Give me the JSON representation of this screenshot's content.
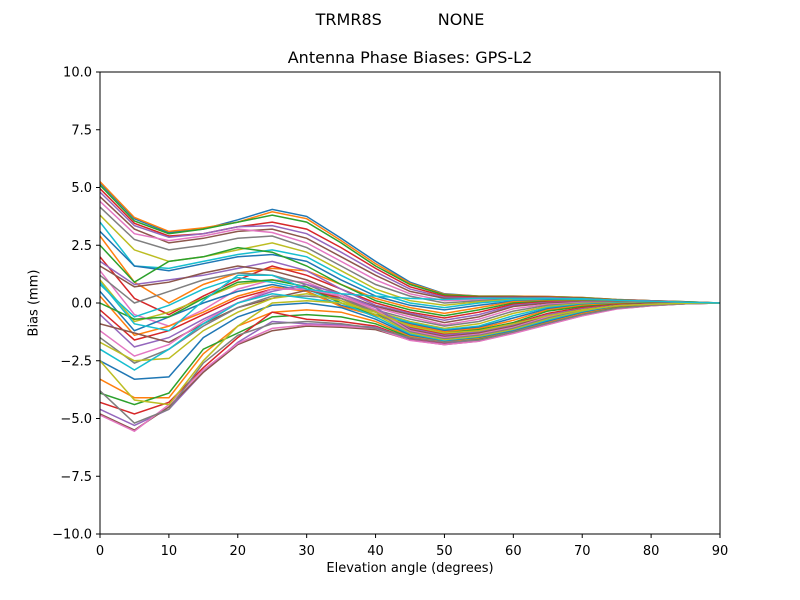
{
  "figure": {
    "suptitle": "TRMR8S           NONE",
    "title": "Antenna Phase Biases: GPS-L2",
    "xlabel": "Elevation angle (degrees)",
    "ylabel": "Bias (mm)"
  },
  "chart_data": {
    "type": "line",
    "title": "Antenna Phase Biases: GPS-L2",
    "suptitle": "TRMR8S           NONE",
    "xlabel": "Elevation angle (degrees)",
    "ylabel": "Bias (mm)",
    "xlim": [
      0,
      90
    ],
    "ylim": [
      -10,
      10
    ],
    "xticks": [
      0,
      10,
      20,
      30,
      40,
      50,
      60,
      70,
      80,
      90
    ],
    "yticks": [
      -10.0,
      -7.5,
      -5.0,
      -2.5,
      0.0,
      2.5,
      5.0,
      7.5,
      10.0
    ],
    "ytick_labels": [
      "−10.0",
      "−7.5",
      "−5.0",
      "−2.5",
      "0.0",
      "2.5",
      "5.0",
      "7.5",
      "10.0"
    ],
    "grid": false,
    "legend": null,
    "colors": [
      "#1f77b4",
      "#ff7f0e",
      "#2ca02c",
      "#d62728",
      "#9467bd",
      "#8c564b",
      "#e377c2",
      "#7f7f7f",
      "#bcbd22",
      "#17becf"
    ],
    "x": [
      0,
      5,
      10,
      15,
      20,
      25,
      30,
      35,
      40,
      45,
      50,
      55,
      60,
      65,
      70,
      75,
      80,
      85,
      90
    ],
    "series": [
      {
        "values": [
          5.2,
          3.65,
          3.05,
          3.2,
          3.6,
          4.05,
          3.75,
          2.8,
          1.8,
          0.9,
          0.4,
          0.3,
          0.3,
          0.28,
          0.24,
          0.15,
          0.1,
          0.05,
          0
        ]
      },
      {
        "values": [
          5.25,
          3.7,
          3.1,
          3.25,
          3.5,
          3.95,
          3.65,
          2.7,
          1.7,
          0.85,
          0.38,
          0.3,
          0.3,
          0.28,
          0.24,
          0.15,
          0.1,
          0.05,
          0
        ]
      },
      {
        "values": [
          5.1,
          3.55,
          3.0,
          3.2,
          3.5,
          3.8,
          3.5,
          2.6,
          1.6,
          0.8,
          0.35,
          0.28,
          0.28,
          0.26,
          0.22,
          0.14,
          0.1,
          0.05,
          0
        ]
      },
      {
        "values": [
          4.95,
          3.45,
          2.9,
          3.0,
          3.3,
          3.5,
          3.2,
          2.4,
          1.5,
          0.7,
          0.3,
          0.25,
          0.26,
          0.25,
          0.2,
          0.13,
          0.1,
          0.04,
          0
        ]
      },
      {
        "values": [
          4.8,
          3.35,
          2.85,
          3.0,
          3.3,
          3.35,
          3.0,
          2.2,
          1.35,
          0.6,
          0.25,
          0.22,
          0.24,
          0.23,
          0.18,
          0.12,
          0.09,
          0.04,
          0
        ]
      },
      {
        "values": [
          4.6,
          3.2,
          2.6,
          2.8,
          3.1,
          3.2,
          2.8,
          2.0,
          1.2,
          0.5,
          0.2,
          0.2,
          0.22,
          0.21,
          0.17,
          0.11,
          0.08,
          0.04,
          0
        ]
      },
      {
        "values": [
          4.4,
          3.0,
          2.7,
          2.9,
          3.2,
          3.05,
          2.6,
          1.8,
          1.0,
          0.4,
          0.1,
          0.15,
          0.2,
          0.2,
          0.16,
          0.1,
          0.08,
          0.03,
          0
        ]
      },
      {
        "values": [
          4.15,
          2.75,
          2.3,
          2.5,
          2.8,
          2.9,
          2.4,
          1.6,
          0.8,
          0.3,
          0.0,
          0.1,
          0.18,
          0.18,
          0.15,
          0.1,
          0.07,
          0.03,
          0
        ]
      },
      {
        "values": [
          3.8,
          2.3,
          1.8,
          2.0,
          2.3,
          2.6,
          2.2,
          1.4,
          0.6,
          0.1,
          -0.1,
          0.05,
          0.15,
          0.16,
          0.13,
          0.09,
          0.06,
          0.03,
          0
        ]
      },
      {
        "values": [
          3.5,
          1.6,
          1.5,
          1.8,
          2.1,
          2.3,
          2.0,
          1.2,
          0.45,
          0.0,
          -0.2,
          0.0,
          0.12,
          0.14,
          0.12,
          0.08,
          0.06,
          0.02,
          0
        ]
      },
      {
        "values": [
          3.1,
          1.6,
          1.4,
          1.7,
          2.0,
          2.1,
          1.8,
          1.0,
          0.3,
          -0.1,
          -0.3,
          -0.1,
          0.08,
          0.12,
          0.1,
          0.07,
          0.05,
          0.02,
          0
        ]
      },
      {
        "values": [
          2.9,
          0.9,
          0.0,
          0.8,
          1.3,
          1.5,
          1.4,
          0.8,
          0.2,
          -0.2,
          -0.45,
          -0.2,
          0.05,
          0.1,
          0.09,
          0.06,
          0.05,
          0.02,
          0
        ]
      },
      {
        "values": [
          2.5,
          0.9,
          1.8,
          2.0,
          2.4,
          2.2,
          1.6,
          0.8,
          0.1,
          -0.3,
          -0.55,
          -0.3,
          0.0,
          0.08,
          0.08,
          0.05,
          0.04,
          0.02,
          0
        ]
      },
      {
        "values": [
          2.0,
          0.2,
          -0.5,
          0.3,
          1.0,
          1.6,
          1.2,
          0.6,
          0.0,
          -0.4,
          -0.65,
          -0.4,
          -0.05,
          0.05,
          0.06,
          0.04,
          0.04,
          0.01,
          0
        ]
      },
      {
        "values": [
          1.8,
          0.8,
          1.0,
          1.2,
          1.5,
          1.8,
          1.4,
          0.6,
          -0.1,
          -0.45,
          -0.75,
          -0.5,
          -0.1,
          0.02,
          0.05,
          0.04,
          0.03,
          0.01,
          0
        ]
      },
      {
        "values": [
          1.6,
          0.7,
          0.9,
          1.3,
          1.6,
          1.4,
          1.0,
          0.4,
          -0.15,
          -0.5,
          -0.85,
          -0.6,
          -0.15,
          0.0,
          0.04,
          0.03,
          0.03,
          0.01,
          0
        ]
      },
      {
        "values": [
          1.4,
          -0.5,
          -1.0,
          -0.3,
          0.6,
          1.0,
          0.9,
          0.3,
          -0.2,
          -0.6,
          -0.95,
          -0.7,
          -0.25,
          -0.05,
          0.02,
          0.02,
          0.02,
          0.01,
          0
        ]
      },
      {
        "values": [
          1.2,
          0.0,
          0.5,
          1.0,
          1.3,
          1.2,
          0.8,
          0.2,
          -0.3,
          -0.7,
          -1.0,
          -0.8,
          -0.35,
          -0.1,
          0.0,
          0.02,
          0.02,
          0.0,
          0
        ]
      },
      {
        "values": [
          1.0,
          -0.8,
          -0.4,
          0.2,
          0.8,
          1.0,
          0.7,
          0.1,
          -0.35,
          -0.8,
          -1.1,
          -0.9,
          -0.45,
          -0.15,
          -0.02,
          0.01,
          0.01,
          0.0,
          0
        ]
      },
      {
        "values": [
          0.8,
          -0.6,
          -0.1,
          0.6,
          1.1,
          0.9,
          0.6,
          0.0,
          -0.4,
          -0.85,
          -1.15,
          -1.0,
          -0.55,
          -0.2,
          -0.05,
          0.0,
          0.01,
          0.0,
          0
        ]
      },
      {
        "values": [
          0.5,
          -1.2,
          -0.6,
          0.0,
          0.5,
          0.8,
          0.5,
          -0.1,
          -0.5,
          -0.9,
          -1.2,
          -1.05,
          -0.65,
          -0.25,
          -0.08,
          -0.02,
          0.0,
          0.0,
          0
        ]
      },
      {
        "values": [
          0.3,
          -1.4,
          -1.0,
          -0.4,
          0.3,
          0.7,
          0.5,
          -0.15,
          -0.55,
          -0.95,
          -1.25,
          -1.1,
          -0.75,
          -0.3,
          -0.1,
          -0.03,
          0.0,
          0.0,
          0
        ]
      },
      {
        "values": [
          0.0,
          -0.7,
          -0.6,
          0.2,
          0.9,
          1.0,
          0.7,
          0.0,
          -0.5,
          -1.0,
          -1.3,
          -1.15,
          -0.85,
          -0.35,
          -0.15,
          -0.05,
          -0.01,
          0.0,
          0
        ]
      },
      {
        "values": [
          -0.3,
          -1.6,
          -1.2,
          -0.5,
          0.2,
          0.6,
          0.6,
          0.2,
          -0.4,
          -1.05,
          -1.35,
          -1.2,
          -0.9,
          -0.45,
          -0.2,
          -0.07,
          -0.02,
          0.0,
          0
        ]
      },
      {
        "values": [
          -0.5,
          -1.9,
          -1.5,
          -0.7,
          0.0,
          0.5,
          0.8,
          0.4,
          -0.2,
          -1.1,
          -1.4,
          -1.25,
          -0.95,
          -0.5,
          -0.25,
          -0.09,
          -0.03,
          -0.01,
          0
        ]
      },
      {
        "values": [
          -0.9,
          -1.3,
          -1.7,
          -0.9,
          -0.2,
          0.2,
          0.55,
          0.3,
          -0.3,
          -1.15,
          -1.45,
          -1.3,
          -1.0,
          -0.55,
          -0.28,
          -0.1,
          -0.04,
          -0.01,
          0
        ]
      },
      {
        "values": [
          -1.2,
          -2.3,
          -1.8,
          -0.8,
          0.0,
          0.6,
          0.6,
          0.3,
          -0.3,
          -1.2,
          -1.5,
          -1.35,
          -1.05,
          -0.6,
          -0.3,
          -0.12,
          -0.05,
          -0.01,
          0
        ]
      },
      {
        "values": [
          -1.5,
          -2.6,
          -2.0,
          -1.0,
          -0.2,
          0.3,
          0.3,
          0.2,
          -0.4,
          -1.25,
          -1.55,
          -1.4,
          -1.1,
          -0.65,
          -0.33,
          -0.13,
          -0.05,
          -0.01,
          0
        ]
      },
      {
        "values": [
          -1.7,
          -2.5,
          -2.4,
          -1.2,
          -0.4,
          0.2,
          0.4,
          0.1,
          -0.5,
          -1.3,
          -1.6,
          -1.45,
          -1.15,
          -0.7,
          -0.36,
          -0.14,
          -0.06,
          -0.02,
          0
        ]
      },
      {
        "values": [
          -2.0,
          -2.9,
          -2.0,
          -0.9,
          0.0,
          0.4,
          0.2,
          0.0,
          -0.6,
          -1.35,
          -1.65,
          -1.5,
          -1.2,
          -0.75,
          -0.4,
          -0.15,
          -0.06,
          -0.02,
          0
        ]
      },
      {
        "values": [
          -2.5,
          -3.3,
          -3.2,
          -1.5,
          -0.6,
          -0.1,
          0.0,
          -0.2,
          -0.7,
          -1.4,
          -1.68,
          -1.52,
          -1.22,
          -0.8,
          -0.43,
          -0.17,
          -0.07,
          -0.02,
          0
        ]
      },
      {
        "values": [
          -3.3,
          -4.1,
          -4.1,
          -2.2,
          -1.0,
          -0.4,
          -0.3,
          -0.4,
          -0.8,
          -1.45,
          -1.7,
          -1.55,
          -1.25,
          -0.85,
          -0.46,
          -0.18,
          -0.08,
          -0.02,
          0
        ]
      },
      {
        "values": [
          -3.9,
          -4.4,
          -3.9,
          -2.0,
          -1.3,
          -0.6,
          -0.5,
          -0.6,
          -0.9,
          -1.5,
          -1.72,
          -1.58,
          -1.27,
          -0.88,
          -0.5,
          -0.2,
          -0.09,
          -0.02,
          0
        ]
      },
      {
        "values": [
          -4.3,
          -4.8,
          -4.3,
          -2.8,
          -1.5,
          -0.4,
          -0.7,
          -0.8,
          -1.0,
          -1.55,
          -1.75,
          -1.6,
          -1.28,
          -0.9,
          -0.52,
          -0.22,
          -0.1,
          -0.03,
          0
        ]
      },
      {
        "values": [
          -4.6,
          -5.3,
          -4.6,
          -3.0,
          -1.7,
          -0.8,
          -0.9,
          -0.95,
          -1.05,
          -1.58,
          -1.78,
          -1.62,
          -1.3,
          -0.92,
          -0.54,
          -0.24,
          -0.11,
          -0.03,
          0
        ]
      },
      {
        "values": [
          -4.8,
          -5.5,
          -4.5,
          -3.0,
          -1.8,
          -1.2,
          -1.0,
          -1.05,
          -1.15,
          -1.6,
          -1.8,
          -1.65,
          -1.3,
          -0.93,
          -0.55,
          -0.25,
          -0.12,
          -0.03,
          0
        ]
      },
      {
        "values": [
          -4.85,
          -5.55,
          -4.4,
          -2.9,
          -1.75,
          -1.1,
          -0.95,
          -1.0,
          -1.1,
          -1.62,
          -1.8,
          -1.66,
          -1.32,
          -0.94,
          -0.56,
          -0.26,
          -0.12,
          -0.03,
          0
        ]
      },
      {
        "values": [
          -3.8,
          -5.2,
          -4.6,
          -2.6,
          -1.4,
          -0.9,
          -0.8,
          -0.9,
          -1.1,
          -1.5,
          -1.7,
          -1.6,
          -1.25,
          -0.88,
          -0.5,
          -0.22,
          -0.1,
          -0.03,
          0
        ]
      },
      {
        "values": [
          -2.5,
          -4.2,
          -4.4,
          -2.5,
          -1.0,
          0.0,
          0.1,
          0.0,
          -0.4,
          -1.0,
          -1.3,
          -1.2,
          -0.9,
          -0.55,
          -0.3,
          -0.12,
          -0.05,
          -0.01,
          0
        ]
      },
      {
        "values": [
          0.9,
          -0.9,
          -1.2,
          0.1,
          1.2,
          1.2,
          0.6,
          0.4,
          0.3,
          0.2,
          0.15,
          0.2,
          0.2,
          0.2,
          0.18,
          0.12,
          0.08,
          0.03,
          0
        ]
      }
    ]
  }
}
